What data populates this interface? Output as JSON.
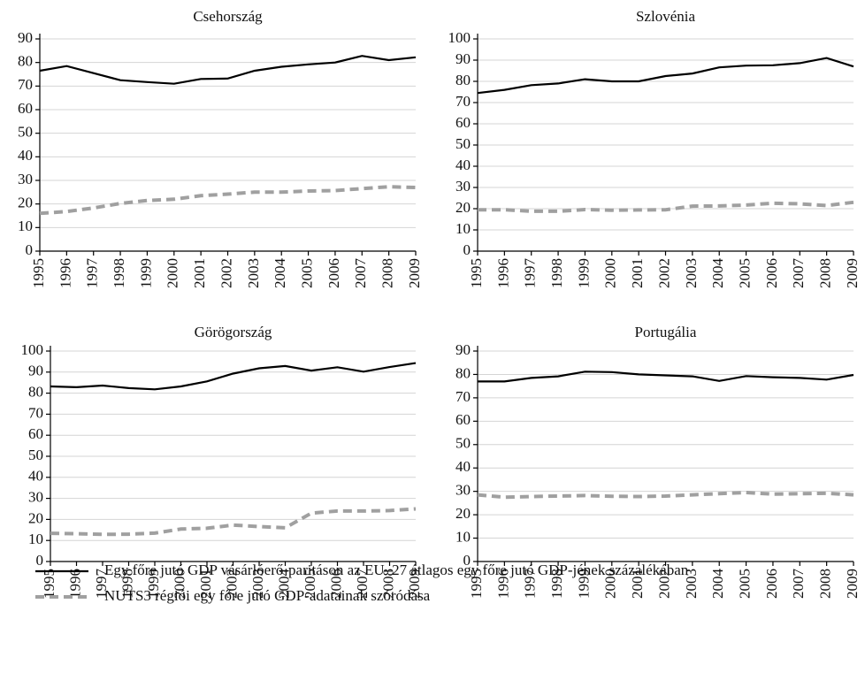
{
  "chart_data": [
    {
      "type": "line",
      "title": "Csehország",
      "categories": [
        "1995",
        "1996",
        "1997",
        "1998",
        "1999",
        "2000",
        "2001",
        "2002",
        "2003",
        "2004",
        "2005",
        "2006",
        "2007",
        "2008",
        "2009"
      ],
      "ylim": [
        0,
        90
      ],
      "yticks": [
        0,
        10,
        20,
        30,
        40,
        50,
        60,
        70,
        80,
        90
      ],
      "grid": true,
      "series": [
        {
          "color": "#000000",
          "dash": "solid",
          "values": [
            76.5,
            78.5,
            75.5,
            72.5,
            71.7,
            71,
            73,
            73.2,
            76.5,
            78.2,
            79.2,
            80,
            82.8,
            81,
            82.2
          ]
        },
        {
          "color": "#a0a0a0",
          "dash": "dashed",
          "values": [
            16,
            16.8,
            18.3,
            20.2,
            21.5,
            22,
            23.5,
            24.2,
            25,
            25,
            25.5,
            25.7,
            26.5,
            27.3,
            27
          ]
        }
      ]
    },
    {
      "type": "line",
      "title": "Szlovénia",
      "categories": [
        "1995",
        "1996",
        "1997",
        "1998",
        "1999",
        "2000",
        "2001",
        "2002",
        "2003",
        "2004",
        "2005",
        "2006",
        "2007",
        "2008",
        "2009"
      ],
      "ylim": [
        0,
        100
      ],
      "yticks": [
        0,
        10,
        20,
        30,
        40,
        50,
        60,
        70,
        80,
        90,
        100
      ],
      "grid": true,
      "series": [
        {
          "color": "#000000",
          "dash": "solid",
          "values": [
            74.5,
            76,
            78.2,
            79,
            81,
            80,
            80,
            82.5,
            83.7,
            86.6,
            87.4,
            87.6,
            88.6,
            91,
            87
          ]
        },
        {
          "color": "#a0a0a0",
          "dash": "dashed",
          "values": [
            19.5,
            19.5,
            18.8,
            18.8,
            19.6,
            19.3,
            19.4,
            19.5,
            21.2,
            21.3,
            21.7,
            22.6,
            22.3,
            21.5,
            23
          ]
        }
      ]
    },
    {
      "type": "line",
      "title": "Görögország",
      "categories": [
        "1995",
        "1996",
        "1997",
        "1998",
        "1999",
        "2000",
        "2001",
        "2002",
        "2003",
        "2004",
        "2005",
        "2006",
        "2007",
        "2008",
        "2009"
      ],
      "ylim": [
        0,
        100
      ],
      "yticks": [
        0,
        10,
        20,
        30,
        40,
        50,
        60,
        70,
        80,
        90,
        100
      ],
      "grid": true,
      "series": [
        {
          "color": "#000000",
          "dash": "solid",
          "values": [
            83.2,
            82.8,
            83.6,
            82.4,
            81.8,
            83.2,
            85.6,
            89.3,
            91.8,
            92.9,
            90.7,
            92.3,
            90.2,
            92.4,
            94.3
          ]
        },
        {
          "color": "#a0a0a0",
          "dash": "dashed",
          "values": [
            13.4,
            13.2,
            12.9,
            13,
            13.5,
            15.4,
            15.8,
            17.3,
            16.6,
            16,
            23,
            24,
            24,
            24.2,
            25
          ]
        }
      ]
    },
    {
      "type": "line",
      "title": "Portugália",
      "categories": [
        "1995",
        "1996",
        "1997",
        "1998",
        "1999",
        "2000",
        "2001",
        "2002",
        "2003",
        "2004",
        "2005",
        "2006",
        "2007",
        "2008",
        "2009"
      ],
      "ylim": [
        0,
        90
      ],
      "yticks": [
        0,
        10,
        20,
        30,
        40,
        50,
        60,
        70,
        80,
        90
      ],
      "grid": true,
      "series": [
        {
          "color": "#000000",
          "dash": "solid",
          "values": [
            77,
            77,
            78.5,
            79.2,
            81.2,
            81,
            80,
            79.6,
            79.2,
            77.2,
            79.3,
            78.8,
            78.5,
            77.8,
            79.8
          ]
        },
        {
          "color": "#a0a0a0",
          "dash": "dashed",
          "values": [
            28.5,
            27.5,
            27.8,
            28,
            28.2,
            27.9,
            27.8,
            28,
            28.5,
            29,
            29.5,
            28.8,
            29,
            29.2,
            28.5
          ]
        }
      ]
    }
  ],
  "legend": [
    {
      "name": "Egy főre jutó GDP vásárlóerő-paritáson az EU–27 átlagos egy főre jutó GDP-jének százalékában",
      "color": "#000000",
      "dash": "solid"
    },
    {
      "name": "NUTS3 régiói egy főre jutó GDP-adatainak szóródása",
      "color": "#a0a0a0",
      "dash": "dashed"
    }
  ]
}
